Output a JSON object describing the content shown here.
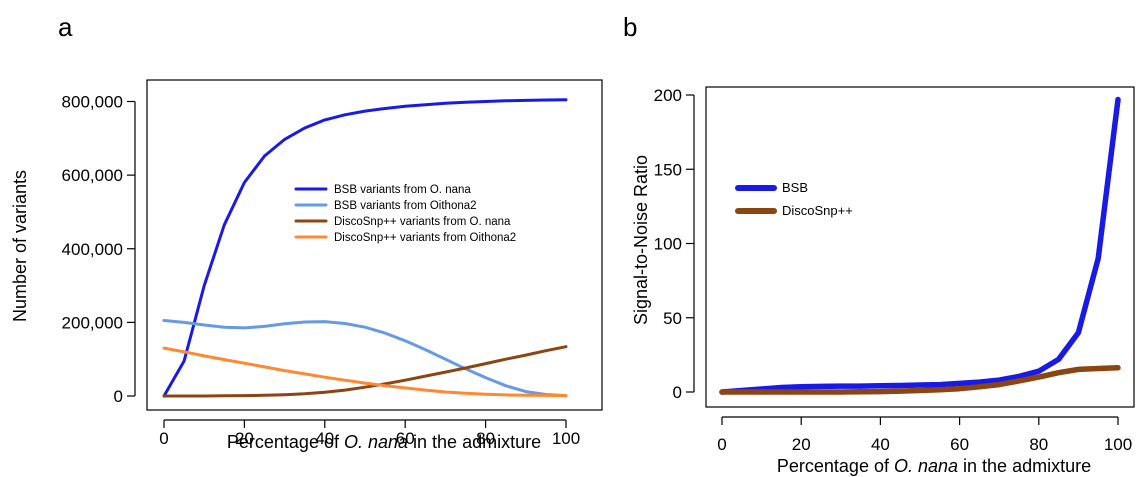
{
  "chart_data": [
    {
      "panel": "a",
      "type": "line",
      "xlabel": "Percentage of O. nana in the admixture",
      "ylabel": "Number of variants",
      "xlim": [
        0,
        100
      ],
      "ylim": [
        0,
        820000
      ],
      "x_ticks": [
        0,
        20,
        40,
        60,
        80,
        100
      ],
      "y_ticks": [
        0,
        200000,
        400000,
        600000,
        800000
      ],
      "y_tick_labels": [
        "0",
        "200,000",
        "400,000",
        "600,000",
        "800,000"
      ],
      "grid": false,
      "legend_position": "center-right",
      "series": [
        {
          "name": "BSB variants from O. nana",
          "color": "#1a1ae6",
          "x": [
            0,
            5,
            10,
            15,
            20,
            25,
            30,
            35,
            40,
            45,
            50,
            55,
            60,
            65,
            70,
            75,
            80,
            85,
            90,
            95,
            100
          ],
          "values": [
            0,
            95000,
            300000,
            465000,
            580000,
            652000,
            697000,
            728000,
            750000,
            764000,
            774000,
            781000,
            787000,
            791000,
            795000,
            798000,
            800000,
            802000,
            803000,
            804000,
            805000
          ]
        },
        {
          "name": "BSB variants from Oithona2",
          "color": "#6699e6",
          "x": [
            0,
            5,
            10,
            15,
            20,
            25,
            30,
            35,
            40,
            45,
            50,
            55,
            60,
            65,
            70,
            75,
            80,
            85,
            90,
            95,
            100
          ],
          "values": [
            205000,
            200000,
            193000,
            187000,
            185000,
            189000,
            196000,
            201000,
            202000,
            197000,
            187000,
            171000,
            150000,
            126000,
            100000,
            74000,
            50000,
            28000,
            12000,
            4000,
            1000
          ]
        },
        {
          "name": "DiscoSnp++ variants from O. nana",
          "color": "#8b4513",
          "x": [
            0,
            5,
            10,
            15,
            20,
            25,
            30,
            35,
            40,
            45,
            50,
            55,
            60,
            65,
            70,
            75,
            80,
            85,
            90,
            95,
            100
          ],
          "values": [
            0,
            0,
            0,
            500,
            1000,
            2000,
            3500,
            6000,
            10000,
            16000,
            24000,
            33000,
            43000,
            54000,
            65000,
            76000,
            88000,
            100000,
            111000,
            123000,
            134000
          ]
        },
        {
          "name": "DiscoSnp++ variants from Oithona2",
          "color": "#ff8833",
          "x": [
            0,
            5,
            10,
            15,
            20,
            25,
            30,
            35,
            40,
            45,
            50,
            55,
            60,
            65,
            70,
            75,
            80,
            85,
            90,
            95,
            100
          ],
          "values": [
            130000,
            120000,
            109000,
            99000,
            89000,
            79000,
            69000,
            60000,
            51000,
            43000,
            35000,
            28000,
            22000,
            16000,
            11000,
            7500,
            5000,
            3000,
            2000,
            1500,
            1000
          ]
        }
      ]
    },
    {
      "panel": "b",
      "type": "line",
      "xlabel": "Percentage of O. nana in the admixture",
      "ylabel": "Signal-to-Noise Ratio",
      "xlim": [
        0,
        100
      ],
      "ylim": [
        0,
        200
      ],
      "x_ticks": [
        0,
        20,
        40,
        60,
        80,
        100
      ],
      "y_ticks": [
        0,
        50,
        100,
        150,
        200
      ],
      "y_tick_labels": [
        "0",
        "50",
        "100",
        "150",
        "200"
      ],
      "grid": false,
      "legend_position": "top-left",
      "series": [
        {
          "name": "BSB",
          "color": "#1a1ae6",
          "x": [
            0,
            5,
            10,
            15,
            20,
            25,
            30,
            35,
            40,
            45,
            50,
            55,
            60,
            65,
            70,
            75,
            80,
            85,
            90,
            95,
            100
          ],
          "values": [
            0,
            1,
            2,
            3,
            3.5,
            3.8,
            4,
            4,
            4.2,
            4.4,
            4.7,
            5,
            5.8,
            6.7,
            8,
            10.5,
            14,
            22,
            40,
            90,
            197
          ]
        },
        {
          "name": "DiscoSnp++",
          "color": "#8b4513",
          "x": [
            0,
            5,
            10,
            15,
            20,
            25,
            30,
            35,
            40,
            45,
            50,
            55,
            60,
            65,
            70,
            75,
            80,
            85,
            90,
            95,
            100
          ],
          "values": [
            0,
            0,
            0,
            0,
            0,
            0,
            0,
            0.2,
            0.3,
            0.6,
            1,
            1.5,
            2.2,
            3.5,
            5,
            7.5,
            10,
            13,
            15.2,
            15.8,
            16.3
          ]
        }
      ]
    }
  ]
}
